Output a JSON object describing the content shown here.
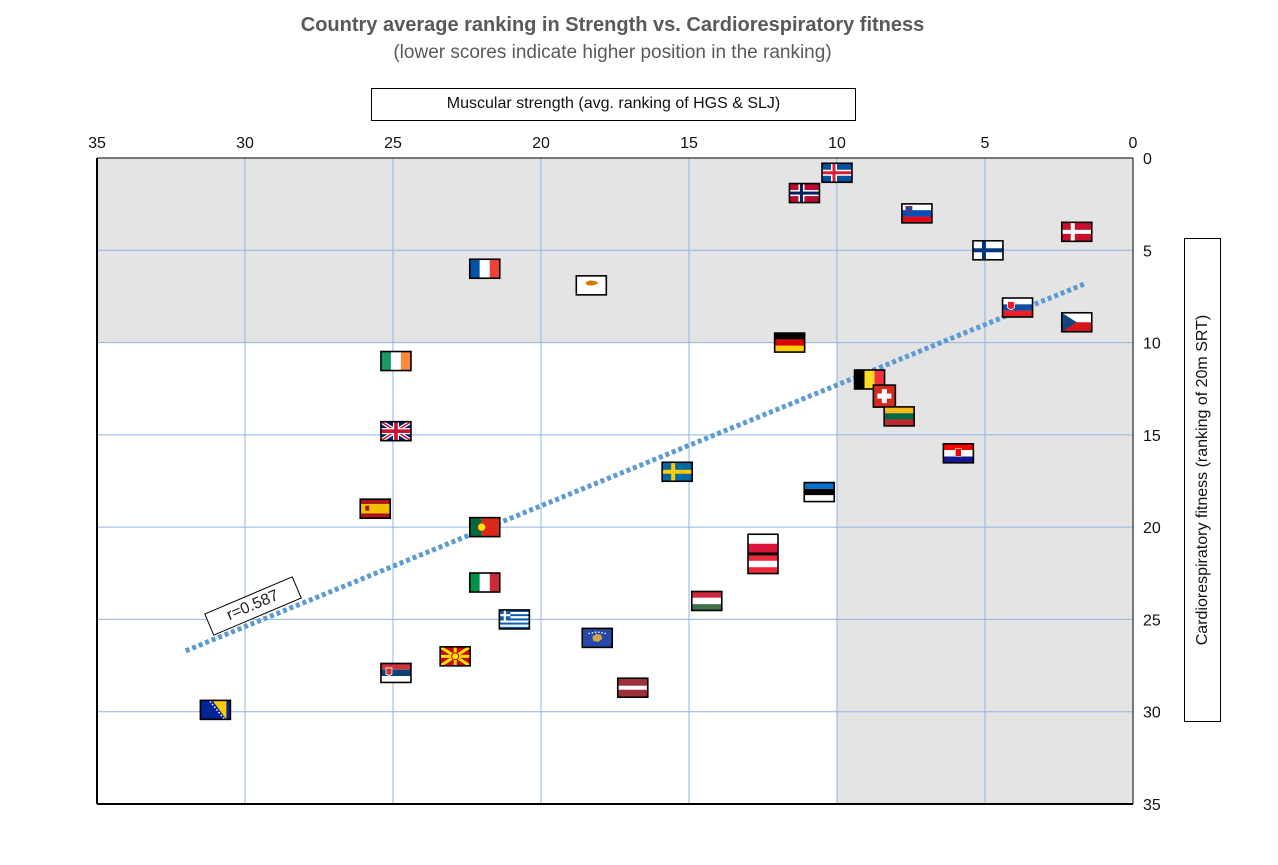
{
  "chart_data": {
    "type": "scatter",
    "title": "Country average ranking in Strength vs. Cardiorespiratory fitness",
    "subtitle": "(lower scores indicate higher position in the ranking)",
    "xlabel": "Muscular strength (avg. ranking of HGS & SLJ)",
    "ylabel": "Cardiorespiratory fitness (ranking of 20m SRT)",
    "xlim": [
      35,
      0
    ],
    "ylim": [
      35,
      0
    ],
    "x_reversed": true,
    "y_reversed": true,
    "x_ticks": [
      35,
      30,
      25,
      20,
      15,
      10,
      5,
      0
    ],
    "y_ticks": [
      0,
      5,
      10,
      15,
      20,
      25,
      30,
      35
    ],
    "grid": true,
    "annotation": "r=0.587",
    "trendline": {
      "x": [
        32,
        1.6
      ],
      "y": [
        26.7,
        6.8
      ],
      "color": "#5b9bd5",
      "style": "dotted"
    },
    "shaded_regions": [
      {
        "x": [
          35,
          0
        ],
        "y": [
          0,
          10
        ],
        "color": "#e4e4e4"
      },
      {
        "x": [
          10,
          0
        ],
        "y": [
          10,
          35
        ],
        "color": "#e4e4e4"
      }
    ],
    "points": [
      {
        "flag": "iceland-flag",
        "x": 10.0,
        "y": 0.8
      },
      {
        "flag": "norway-flag",
        "x": 11.1,
        "y": 1.9
      },
      {
        "flag": "slovenia-flag",
        "x": 7.3,
        "y": 3.0
      },
      {
        "flag": "denmark-flag",
        "x": 1.9,
        "y": 4.0
      },
      {
        "flag": "finland-flag",
        "x": 4.9,
        "y": 5.0
      },
      {
        "flag": "france-flag",
        "x": 21.9,
        "y": 6.0
      },
      {
        "flag": "cyprus-flag",
        "x": 18.3,
        "y": 6.9
      },
      {
        "flag": "slovakia-flag",
        "x": 3.9,
        "y": 8.1
      },
      {
        "flag": "czech-republic-flag",
        "x": 1.9,
        "y": 8.9
      },
      {
        "flag": "germany-flag",
        "x": 11.6,
        "y": 10.0
      },
      {
        "flag": "ireland-flag",
        "x": 24.9,
        "y": 11.0
      },
      {
        "flag": "belgium-flag",
        "x": 8.9,
        "y": 12.0
      },
      {
        "flag": "switzerland-flag",
        "x": 8.4,
        "y": 12.9
      },
      {
        "flag": "lithuania-flag",
        "x": 7.9,
        "y": 14.0
      },
      {
        "flag": "united-kingdom-flag",
        "x": 24.9,
        "y": 14.8
      },
      {
        "flag": "croatia-flag",
        "x": 5.9,
        "y": 16.0
      },
      {
        "flag": "sweden-flag",
        "x": 15.4,
        "y": 17.0
      },
      {
        "flag": "estonia-flag",
        "x": 10.6,
        "y": 18.1
      },
      {
        "flag": "spain-flag",
        "x": 25.6,
        "y": 19.0
      },
      {
        "flag": "portugal-flag",
        "x": 21.9,
        "y": 20.0
      },
      {
        "flag": "poland-flag",
        "x": 12.5,
        "y": 20.9
      },
      {
        "flag": "austria-flag",
        "x": 12.5,
        "y": 22.0
      },
      {
        "flag": "italy-flag",
        "x": 21.9,
        "y": 23.0
      },
      {
        "flag": "hungary-flag",
        "x": 14.4,
        "y": 24.0
      },
      {
        "flag": "greece-flag",
        "x": 20.9,
        "y": 25.0
      },
      {
        "flag": "kosovo-flag",
        "x": 18.1,
        "y": 26.0
      },
      {
        "flag": "north-macedonia-flag",
        "x": 22.9,
        "y": 27.0
      },
      {
        "flag": "serbia-flag",
        "x": 24.9,
        "y": 27.9
      },
      {
        "flag": "latvia-flag",
        "x": 16.9,
        "y": 28.7
      },
      {
        "flag": "bosnia-herzegovina-flag",
        "x": 31.0,
        "y": 29.9
      }
    ]
  }
}
